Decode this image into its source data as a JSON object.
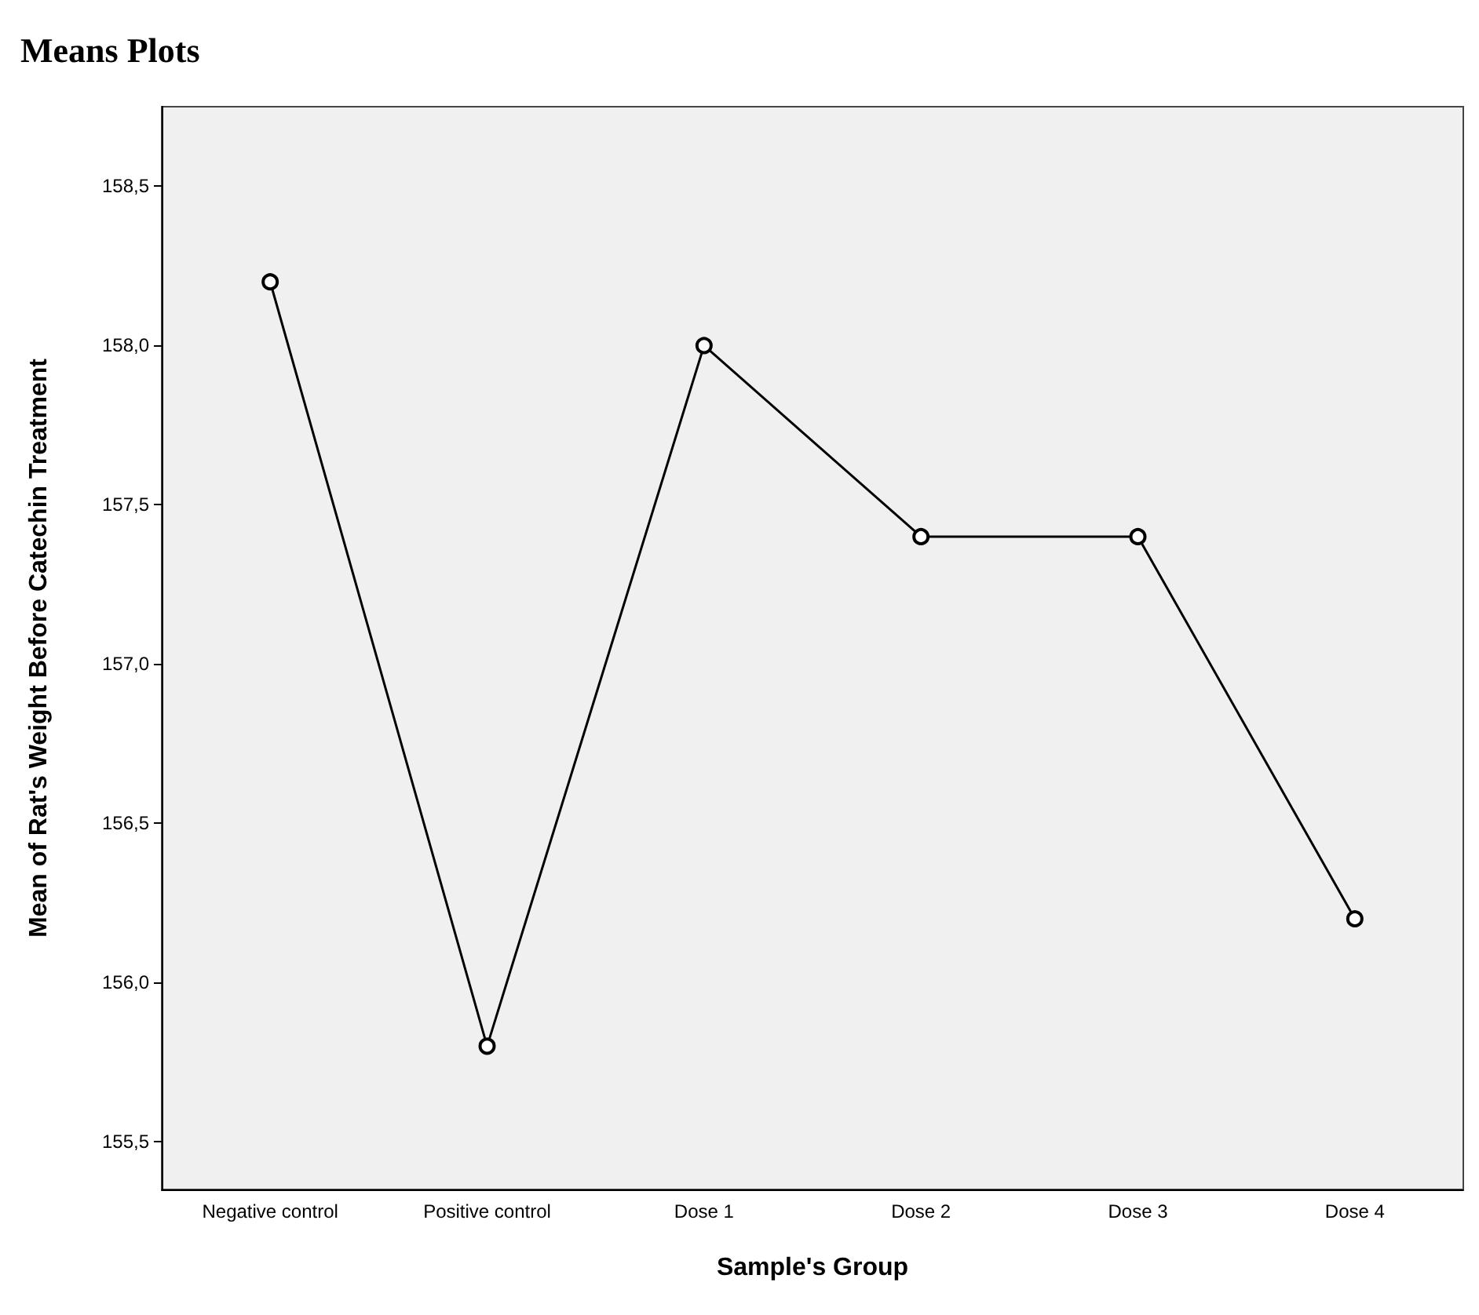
{
  "chart_data": {
    "type": "line",
    "title": "Means Plots",
    "xlabel": "Sample's Group",
    "ylabel": "Mean of Rat's Weight Before Catechin Treatment",
    "categories": [
      "Negative control",
      "Positive control",
      "Dose 1",
      "Dose 2",
      "Dose 3",
      "Dose 4"
    ],
    "series": [
      {
        "color": "#000000",
        "values": [
          158.2,
          155.8,
          158.0,
          157.4,
          157.4,
          156.2
        ]
      }
    ],
    "ylim": [
      155.35,
      158.75
    ],
    "yticks": [
      {
        "value": 155.5,
        "label": "155,5"
      },
      {
        "value": 156,
        "label": "156,0"
      },
      {
        "value": 156.5,
        "label": "156,5"
      },
      {
        "value": 157,
        "label": "157,0"
      },
      {
        "value": 157.5,
        "label": "157,5"
      },
      {
        "value": 158,
        "label": "158,0"
      },
      {
        "value": 158.5,
        "label": "158,5"
      }
    ],
    "grid": false,
    "marker": "circle",
    "line_style": "solid"
  }
}
